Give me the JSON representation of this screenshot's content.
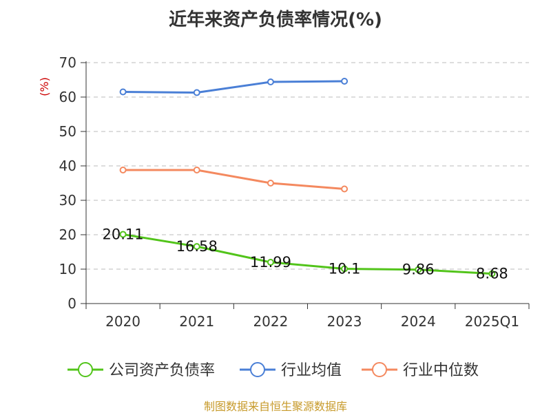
{
  "chart_data": {
    "type": "line",
    "title": "近年来资产负债率情况(%)",
    "ylabel": "(%)",
    "categories": [
      "2020",
      "2021",
      "2022",
      "2023",
      "2024",
      "2025Q1"
    ],
    "ylim": [
      0,
      70
    ],
    "yticks": [
      0,
      10,
      20,
      30,
      40,
      50,
      60,
      70
    ],
    "grid": true,
    "legend_position": "bottom",
    "series": [
      {
        "name": "公司资产负债率",
        "color": "#52c41a",
        "values": [
          20.11,
          16.58,
          11.99,
          10.1,
          9.86,
          8.68
        ],
        "labels": [
          "20.11",
          "16.58",
          "11.99",
          "10.1",
          "9.86",
          "8.68"
        ]
      },
      {
        "name": "行业均值",
        "color": "#4a7fd6",
        "values": [
          61.5,
          61.3,
          64.4,
          64.6,
          null,
          null
        ]
      },
      {
        "name": "行业中位数",
        "color": "#f4895f",
        "values": [
          38.8,
          38.8,
          35.0,
          33.3,
          null,
          null
        ]
      }
    ],
    "source": "制图数据来自恒生聚源数据库",
    "source_color": "#c79a2a",
    "ylabel_color": "#cc0000"
  }
}
